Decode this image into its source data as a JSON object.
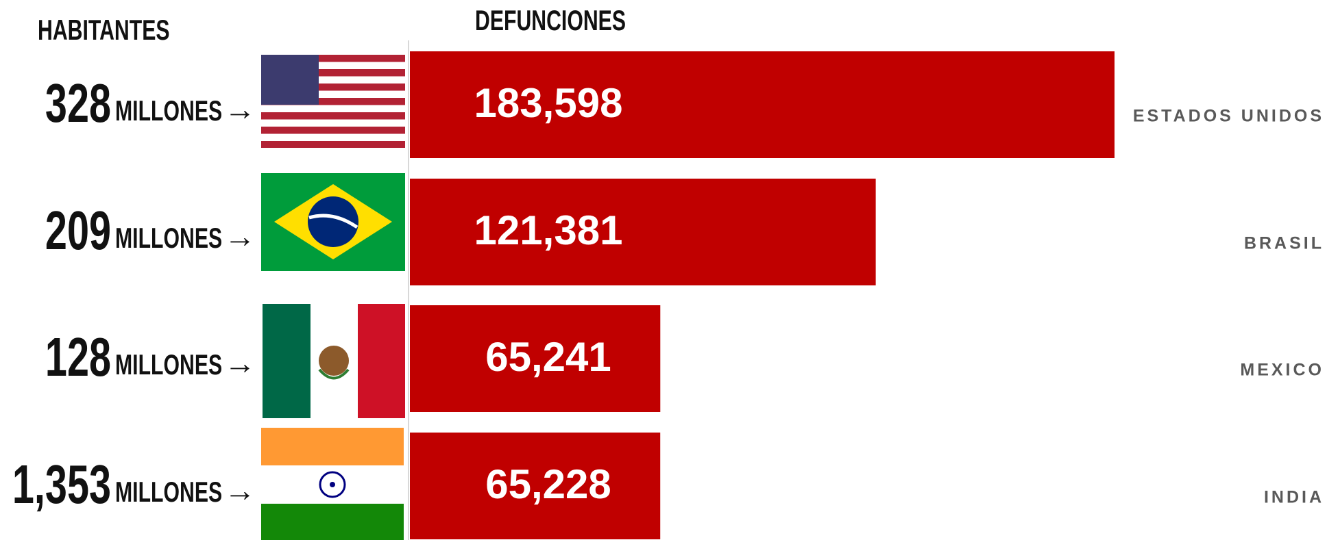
{
  "chart_data": {
    "type": "bar",
    "orientation": "horizontal",
    "population_title": "HABITANTES",
    "title": "DEFUNCIONES",
    "categories": [
      "ESTADOS UNIDOS",
      "BRASIL",
      "MEXICO",
      "INDIA"
    ],
    "values": [
      183598,
      121381,
      65241,
      65228
    ],
    "value_labels": [
      "183,598",
      "121,381",
      "65,241",
      "65,228"
    ],
    "population": [
      "328",
      "209",
      "128",
      "1,353"
    ],
    "population_unit": "MILLONES",
    "color": "#c00000"
  }
}
